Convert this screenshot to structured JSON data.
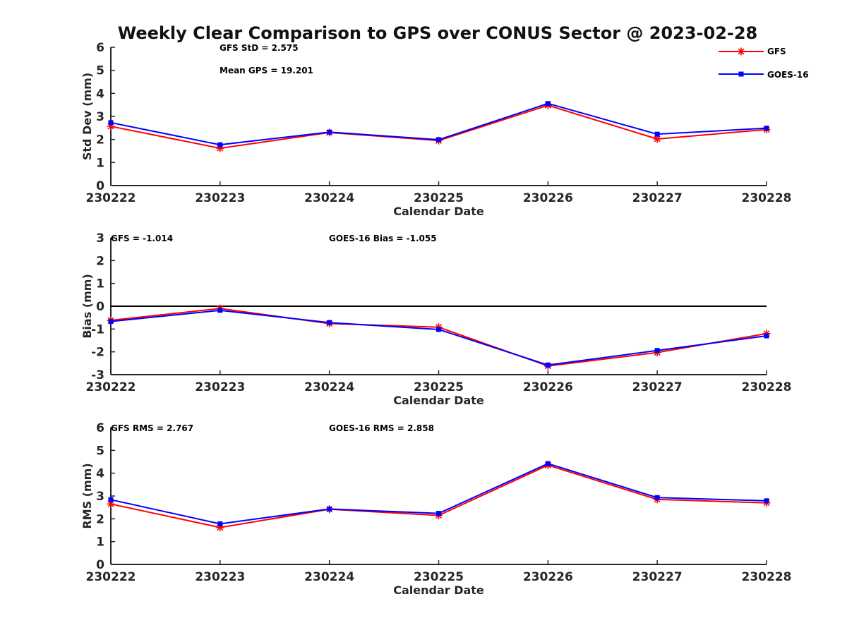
{
  "figure": {
    "title": "Weekly Clear Comparison to GPS over CONUS Sector @ 2023-02-28"
  },
  "legend": [
    {
      "name": "GFS",
      "color": "#ff0000",
      "marker": "asterisk"
    },
    {
      "name": "GOES-16",
      "color": "#0000ff",
      "marker": "square"
    }
  ],
  "chart_data": [
    {
      "type": "line",
      "panel": "std_dev",
      "title": "Weekly Clear Comparison to GPS over CONUS Sector @ 2023-02-28",
      "xlabel": "Calendar Date",
      "ylabel": "Std Dev (mm)",
      "categories": [
        "230222",
        "230223",
        "230224",
        "230225",
        "230226",
        "230227",
        "230228"
      ],
      "ylim": [
        0,
        6
      ],
      "yticks": [
        "0",
        "1",
        "2",
        "3",
        "4",
        "5",
        "6"
      ],
      "zero_line": false,
      "series": [
        {
          "name": "GFS",
          "color": "#ff0000",
          "values": [
            2.57,
            1.62,
            2.3,
            1.95,
            3.48,
            2.02,
            2.43
          ]
        },
        {
          "name": "GOES-16",
          "color": "#0000ff",
          "values": [
            2.73,
            1.77,
            2.32,
            1.99,
            3.56,
            2.23,
            2.49
          ]
        }
      ],
      "annotations": [
        "GFS StD = 2.575",
        "Mean GPS = 19.201"
      ]
    },
    {
      "type": "line",
      "panel": "bias",
      "xlabel": "Calendar Date",
      "ylabel": "Bias (mm)",
      "categories": [
        "230222",
        "230223",
        "230224",
        "230225",
        "230226",
        "230227",
        "230228"
      ],
      "ylim": [
        -3,
        3
      ],
      "yticks": [
        "-3",
        "-2",
        "-1",
        "0",
        "1",
        "2",
        "3"
      ],
      "zero_line": true,
      "series": [
        {
          "name": "GFS",
          "color": "#ff0000",
          "values": [
            -0.62,
            -0.1,
            -0.76,
            -0.92,
            -2.62,
            -2.03,
            -1.2
          ]
        },
        {
          "name": "GOES-16",
          "color": "#0000ff",
          "values": [
            -0.67,
            -0.18,
            -0.72,
            -1.02,
            -2.58,
            -1.94,
            -1.3
          ]
        }
      ],
      "annotations": [
        "GFS = -1.014",
        "GOES-16 Bias  = -1.055"
      ]
    },
    {
      "type": "line",
      "panel": "rms",
      "xlabel": "Calendar Date",
      "ylabel": "RMS (mm)",
      "categories": [
        "230222",
        "230223",
        "230224",
        "230225",
        "230226",
        "230227",
        "230228"
      ],
      "ylim": [
        0,
        6
      ],
      "yticks": [
        "0",
        "1",
        "2",
        "3",
        "4",
        "5",
        "6"
      ],
      "zero_line": false,
      "series": [
        {
          "name": "GFS",
          "color": "#ff0000",
          "values": [
            2.65,
            1.62,
            2.42,
            2.15,
            4.35,
            2.85,
            2.7
          ]
        },
        {
          "name": "GOES-16",
          "color": "#0000ff",
          "values": [
            2.84,
            1.78,
            2.43,
            2.24,
            4.42,
            2.93,
            2.79
          ]
        }
      ],
      "annotations": [
        "GFS RMS = 2.767",
        "GOES-16 RMS = 2.858"
      ]
    }
  ]
}
